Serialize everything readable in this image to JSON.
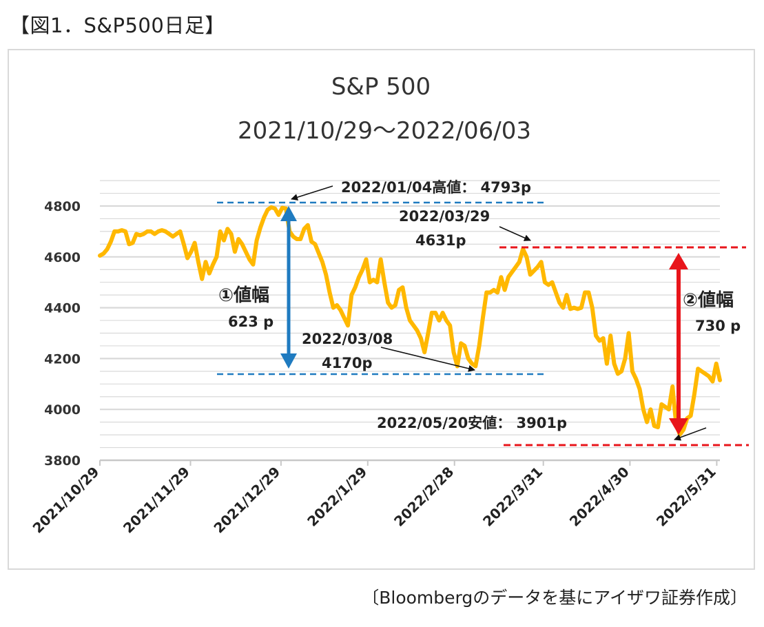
{
  "figure_title": "【図1．S&P500日足】",
  "source_note": "〔Bloombergのデータを基にアイザワ証券作成〕",
  "colors": {
    "line": "#FFB800",
    "range1": "#1F7BC0",
    "range2": "#E8151B",
    "grid": "#d9d9d9",
    "axis": "#c8c8c8"
  },
  "chart_data": {
    "type": "line",
    "title_lines": [
      "S&P 500",
      "2021/10/29～2022/06/03"
    ],
    "xlabel": "",
    "ylabel": "",
    "ylim": [
      3800,
      4900
    ],
    "yticks": [
      3800,
      4000,
      4200,
      4400,
      4600,
      4800
    ],
    "x_tick_labels": [
      "2021/10/29",
      "2021/11/29",
      "2021/12/29",
      "2022/1/29",
      "2022/2/28",
      "2022/3/31",
      "2022/4/30",
      "2022/5/31"
    ],
    "grid": true,
    "series": [
      {
        "values": [
          4605,
          4613,
          4630,
          4660,
          4700,
          4700,
          4705,
          4700,
          4650,
          4655,
          4690,
          4685,
          4690,
          4700,
          4700,
          4690,
          4700,
          4705,
          4700,
          4690,
          4680,
          4690,
          4700,
          4650,
          4595,
          4620,
          4655,
          4580,
          4513,
          4580,
          4535,
          4570,
          4600,
          4700,
          4665,
          4710,
          4690,
          4620,
          4670,
          4650,
          4620,
          4590,
          4570,
          4665,
          4715,
          4755,
          4785,
          4795,
          4790,
          4765,
          4793,
          4790,
          4700,
          4680,
          4670,
          4670,
          4710,
          4725,
          4660,
          4650,
          4615,
          4580,
          4530,
          4460,
          4400,
          4410,
          4390,
          4360,
          4330,
          4450,
          4480,
          4520,
          4550,
          4590,
          4500,
          4510,
          4500,
          4590,
          4500,
          4420,
          4400,
          4410,
          4470,
          4480,
          4400,
          4350,
          4330,
          4310,
          4280,
          4225,
          4300,
          4380,
          4380,
          4350,
          4380,
          4350,
          4330,
          4225,
          4170,
          4260,
          4250,
          4200,
          4180,
          4170,
          4250,
          4360,
          4460,
          4460,
          4470,
          4460,
          4520,
          4470,
          4520,
          4540,
          4560,
          4580,
          4631,
          4600,
          4530,
          4545,
          4560,
          4580,
          4500,
          4490,
          4500,
          4460,
          4420,
          4400,
          4450,
          4395,
          4400,
          4395,
          4400,
          4460,
          4460,
          4400,
          4290,
          4270,
          4280,
          4180,
          4290,
          4180,
          4140,
          4150,
          4200,
          4300,
          4150,
          4120,
          4080,
          4000,
          3950,
          4000,
          3935,
          3930,
          4020,
          4010,
          4000,
          4090,
          3940,
          3901,
          3920,
          3965,
          3975,
          4060,
          4160,
          4150,
          4140,
          4130,
          4110,
          4180,
          4115
        ]
      }
    ],
    "annotations": {
      "high_label": "2022/01/04高値： 4793p",
      "mar29_label_1": "2022/03/29",
      "mar29_label_2": "4631p",
      "mar08_label_1": "2022/03/08",
      "mar08_label_2": "4170p",
      "low_label": "2022/05/20安値： 3901p",
      "range1_label": "①値幅",
      "range1_value": "623 p",
      "range2_label": "②値幅",
      "range2_value": "730 p"
    }
  }
}
